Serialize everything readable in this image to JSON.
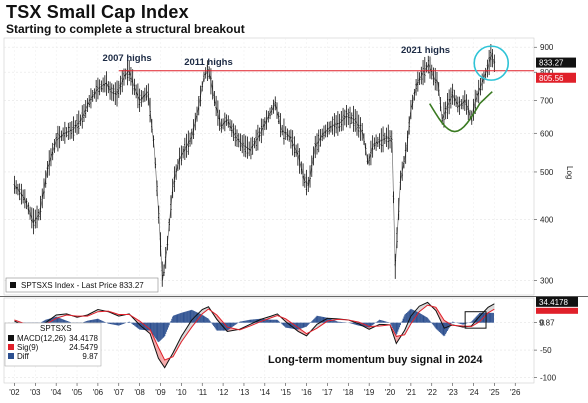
{
  "header": {
    "title": "TSX Small Cap Index",
    "subtitle": "Starting to complete a structural breakout"
  },
  "colors": {
    "price": "#111111",
    "resistance": "#e0202a",
    "cup": "#3a7a22",
    "circle": "#2ec3d6",
    "macd": "#111111",
    "signal": "#e0202a",
    "diff": "#2c4f8f"
  },
  "chart_data": [
    {
      "type": "line",
      "name": "price-panel",
      "title": "TSX Small Cap Index",
      "subtitle": "Starting to complete a structural breakout",
      "yscale": "log",
      "ylim": [
        280,
        940
      ],
      "xlim": [
        2001.5,
        2026.9
      ],
      "yticks": [
        300,
        400,
        500,
        600,
        700,
        800,
        900
      ],
      "ylabel": "Log",
      "legend": {
        "placement": "bottom-left",
        "text": "SPTSXS Index - Last Price 833.27"
      },
      "last_price_label": "833.27",
      "resistance_label": "805.56",
      "resistance_level": 805.56,
      "annotations": [
        {
          "text": "2007 highs",
          "x": 2007.4,
          "y": 805
        },
        {
          "text": "2011 highs",
          "x": 2011.3,
          "y": 805
        },
        {
          "text": "2021 highs",
          "x": 2021.7,
          "y": 805
        }
      ],
      "series": [
        {
          "values": [
            [
              2002.0,
              470
            ],
            [
              2002.5,
              440
            ],
            [
              2002.9,
              395
            ],
            [
              2003.2,
              410
            ],
            [
              2003.6,
              510
            ],
            [
              2004.0,
              580
            ],
            [
              2004.4,
              600
            ],
            [
              2004.8,
              610
            ],
            [
              2005.2,
              640
            ],
            [
              2005.6,
              700
            ],
            [
              2006.0,
              740
            ],
            [
              2006.4,
              760
            ],
            [
              2006.6,
              730
            ],
            [
              2006.9,
              720
            ],
            [
              2007.3,
              790
            ],
            [
              2007.5,
              805
            ],
            [
              2007.7,
              755
            ],
            [
              2008.0,
              700
            ],
            [
              2008.4,
              730
            ],
            [
              2008.7,
              560
            ],
            [
              2008.9,
              420
            ],
            [
              2009.1,
              300
            ],
            [
              2009.3,
              345
            ],
            [
              2009.6,
              470
            ],
            [
              2009.9,
              530
            ],
            [
              2010.2,
              560
            ],
            [
              2010.5,
              590
            ],
            [
              2010.8,
              670
            ],
            [
              2011.1,
              790
            ],
            [
              2011.3,
              810
            ],
            [
              2011.6,
              700
            ],
            [
              2011.9,
              620
            ],
            [
              2012.2,
              640
            ],
            [
              2012.6,
              590
            ],
            [
              2012.9,
              570
            ],
            [
              2013.3,
              555
            ],
            [
              2013.7,
              590
            ],
            [
              2014.1,
              640
            ],
            [
              2014.5,
              690
            ],
            [
              2014.8,
              610
            ],
            [
              2015.2,
              590
            ],
            [
              2015.6,
              540
            ],
            [
              2015.9,
              480
            ],
            [
              2016.1,
              470
            ],
            [
              2016.4,
              560
            ],
            [
              2016.8,
              600
            ],
            [
              2017.2,
              620
            ],
            [
              2017.6,
              630
            ],
            [
              2017.9,
              650
            ],
            [
              2018.3,
              640
            ],
            [
              2018.7,
              600
            ],
            [
              2018.95,
              520
            ],
            [
              2019.2,
              570
            ],
            [
              2019.6,
              580
            ],
            [
              2019.9,
              590
            ],
            [
              2020.1,
              575
            ],
            [
              2020.25,
              320
            ],
            [
              2020.5,
              480
            ],
            [
              2020.8,
              560
            ],
            [
              2021.0,
              670
            ],
            [
              2021.3,
              760
            ],
            [
              2021.6,
              800
            ],
            [
              2021.85,
              830
            ],
            [
              2022.1,
              780
            ],
            [
              2022.3,
              760
            ],
            [
              2022.5,
              640
            ],
            [
              2022.8,
              690
            ],
            [
              2023.0,
              720
            ],
            [
              2023.3,
              680
            ],
            [
              2023.6,
              700
            ],
            [
              2023.9,
              640
            ],
            [
              2024.1,
              700
            ],
            [
              2024.4,
              760
            ],
            [
              2024.7,
              820
            ],
            [
              2024.85,
              870
            ],
            [
              2025.0,
              833.27
            ]
          ]
        }
      ]
    },
    {
      "type": "line",
      "name": "macd-panel",
      "ylim": [
        -110,
        45
      ],
      "xlim": [
        2001.5,
        2026.9
      ],
      "yticks": [
        0,
        -50,
        -100
      ],
      "xtick_labels": [
        "'02",
        "'03",
        "'04",
        "'05",
        "'06",
        "'07",
        "'08",
        "'09",
        "'10",
        "'11",
        "'12",
        "'13",
        "'14",
        "'15",
        "'16",
        "'17",
        "'18",
        "'19",
        "'20",
        "'21",
        "'22",
        "'23",
        "'24",
        "'25",
        "'26"
      ],
      "annotation": "Long-term momentum buy signal in 2024",
      "legend": {
        "placement": "top-left",
        "header": "SPTSXS",
        "entries": [
          {
            "label": "MACD(12,26)",
            "value": "34.4178"
          },
          {
            "label": "Sig(9)",
            "value": "24.5479"
          },
          {
            "label": "Diff",
            "value": "9.87"
          }
        ]
      },
      "last_macd_label": "34.4178",
      "last_diff_label": "9.87",
      "series": [
        {
          "name": "MACD(12,26)",
          "values": [
            [
              2002.0,
              3
            ],
            [
              2002.5,
              -6
            ],
            [
              2003.0,
              -10
            ],
            [
              2003.5,
              0
            ],
            [
              2004.0,
              14
            ],
            [
              2004.5,
              16
            ],
            [
              2005.0,
              10
            ],
            [
              2005.5,
              14
            ],
            [
              2006.0,
              24
            ],
            [
              2006.5,
              20
            ],
            [
              2007.0,
              12
            ],
            [
              2007.5,
              16
            ],
            [
              2008.0,
              -4
            ],
            [
              2008.5,
              -20
            ],
            [
              2008.9,
              -65
            ],
            [
              2009.2,
              -82
            ],
            [
              2009.6,
              -55
            ],
            [
              2010.0,
              -25
            ],
            [
              2010.5,
              5
            ],
            [
              2011.0,
              24
            ],
            [
              2011.3,
              29
            ],
            [
              2011.7,
              6
            ],
            [
              2012.2,
              -16
            ],
            [
              2012.8,
              -12
            ],
            [
              2013.3,
              -3
            ],
            [
              2013.8,
              6
            ],
            [
              2014.3,
              12
            ],
            [
              2014.6,
              16
            ],
            [
              2015.0,
              2
            ],
            [
              2015.6,
              -16
            ],
            [
              2016.0,
              -24
            ],
            [
              2016.5,
              -3
            ],
            [
              2017.0,
              8
            ],
            [
              2017.5,
              7
            ],
            [
              2018.0,
              5
            ],
            [
              2018.5,
              -2
            ],
            [
              2019.0,
              -12
            ],
            [
              2019.5,
              -3
            ],
            [
              2020.0,
              -4
            ],
            [
              2020.3,
              -38
            ],
            [
              2020.7,
              -14
            ],
            [
              2021.0,
              12
            ],
            [
              2021.4,
              30
            ],
            [
              2021.8,
              37
            ],
            [
              2022.2,
              22
            ],
            [
              2022.6,
              -10
            ],
            [
              2023.0,
              -4
            ],
            [
              2023.5,
              -8
            ],
            [
              2023.9,
              -6
            ],
            [
              2024.3,
              12
            ],
            [
              2024.7,
              28
            ],
            [
              2025.0,
              34.4
            ]
          ]
        },
        {
          "name": "Sig(9)",
          "values": [
            [
              2002.0,
              5
            ],
            [
              2002.5,
              -2
            ],
            [
              2003.0,
              -7
            ],
            [
              2003.5,
              -3
            ],
            [
              2004.0,
              8
            ],
            [
              2004.5,
              14
            ],
            [
              2005.0,
              12
            ],
            [
              2005.5,
              12
            ],
            [
              2006.0,
              20
            ],
            [
              2006.5,
              21
            ],
            [
              2007.0,
              15
            ],
            [
              2007.5,
              15
            ],
            [
              2008.0,
              3
            ],
            [
              2008.5,
              -12
            ],
            [
              2008.9,
              -45
            ],
            [
              2009.2,
              -68
            ],
            [
              2009.6,
              -62
            ],
            [
              2010.0,
              -35
            ],
            [
              2010.5,
              -8
            ],
            [
              2011.0,
              16
            ],
            [
              2011.3,
              25
            ],
            [
              2011.7,
              14
            ],
            [
              2012.2,
              -8
            ],
            [
              2012.8,
              -13
            ],
            [
              2013.3,
              -6
            ],
            [
              2013.8,
              2
            ],
            [
              2014.3,
              9
            ],
            [
              2014.6,
              13
            ],
            [
              2015.0,
              7
            ],
            [
              2015.6,
              -9
            ],
            [
              2016.0,
              -20
            ],
            [
              2016.5,
              -10
            ],
            [
              2017.0,
              3
            ],
            [
              2017.5,
              6
            ],
            [
              2018.0,
              5
            ],
            [
              2018.5,
              1
            ],
            [
              2019.0,
              -7
            ],
            [
              2019.5,
              -6
            ],
            [
              2020.0,
              -4
            ],
            [
              2020.3,
              -25
            ],
            [
              2020.7,
              -22
            ],
            [
              2021.0,
              -2
            ],
            [
              2021.4,
              20
            ],
            [
              2021.8,
              32
            ],
            [
              2022.2,
              28
            ],
            [
              2022.6,
              4
            ],
            [
              2023.0,
              -5
            ],
            [
              2023.5,
              -6
            ],
            [
              2023.9,
              -7
            ],
            [
              2024.3,
              2
            ],
            [
              2024.7,
              18
            ],
            [
              2025.0,
              24.5
            ]
          ]
        }
      ]
    }
  ]
}
